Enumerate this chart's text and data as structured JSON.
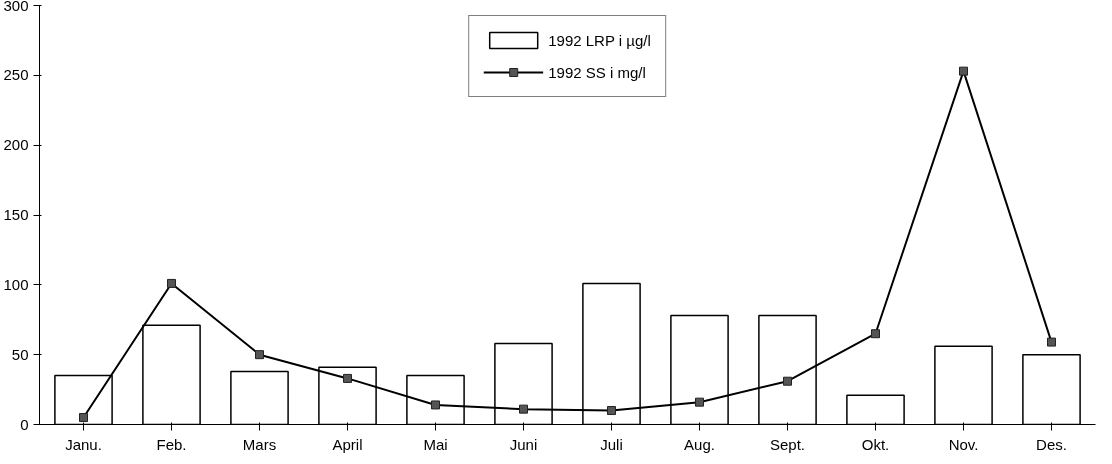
{
  "chart_data": {
    "type": "bar",
    "categories": [
      "Janu.",
      "Feb.",
      "Mars",
      "April",
      "Mai",
      "Juni",
      "Juli",
      "Aug.",
      "Sept.",
      "Okt.",
      "Nov.",
      "Des."
    ],
    "series": [
      {
        "name": "1992 LRP i µg/l",
        "color": "#ffffff",
        "values": [
          35,
          71,
          38,
          41,
          35,
          58,
          101,
          78,
          78,
          21,
          56,
          50
        ]
      },
      {
        "name": "1992 SS i mg/l",
        "type": "line",
        "color": "#000000",
        "values": [
          5,
          101,
          50,
          33,
          14,
          11,
          10,
          16,
          31,
          65,
          253,
          59
        ]
      }
    ],
    "ylim": [
      0,
      300
    ],
    "yticks": [
      0,
      50,
      100,
      150,
      200,
      250,
      300
    ],
    "grid": false,
    "legend": "top",
    "marker": "square",
    "line_style": "solid"
  }
}
